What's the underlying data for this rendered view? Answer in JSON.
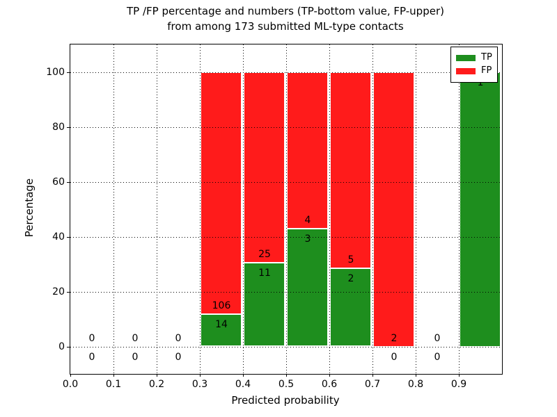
{
  "title": {
    "line1": "TP /FP percentage and numbers (TP-bottom value, FP-upper)",
    "line2": "from among 173 submitted ML-type contacts"
  },
  "axes": {
    "xlabel": "Predicted probability",
    "ylabel": "Percentage",
    "x_tick_labels": [
      "0.0",
      "0.1",
      "0.2",
      "0.3",
      "0.4",
      "0.5",
      "0.6",
      "0.7",
      "0.8",
      "0.9"
    ],
    "x_tick_values": [
      0.0,
      0.1,
      0.2,
      0.3,
      0.4,
      0.5,
      0.6,
      0.7,
      0.8,
      0.9
    ],
    "y_tick_values": [
      0,
      20,
      40,
      60,
      80,
      100
    ],
    "xlim": [
      0.0,
      1.0
    ],
    "ylim": [
      -10,
      110
    ],
    "grid": "dotted"
  },
  "legend": {
    "items": [
      {
        "label": "TP",
        "color": "#1e8e1e"
      },
      {
        "label": "FP",
        "color": "#ff1b1b"
      }
    ],
    "position": "upper right"
  },
  "colors": {
    "tp": "#1e8e1e",
    "fp": "#ff1b1b",
    "bar_edge": "#ffffff",
    "text": "#000000"
  },
  "chart_data": {
    "type": "bar",
    "stacked": true,
    "normalized_to_percent": true,
    "title": "TP /FP percentage and numbers (TP-bottom value, FP-upper) from among 173 submitted ML-type contacts",
    "xlabel": "Predicted probability",
    "ylabel": "Percentage",
    "ylim": [
      -10,
      110
    ],
    "bin_width": 0.1,
    "series_names": [
      "TP",
      "FP"
    ],
    "bins": [
      {
        "start": 0.0,
        "end": 0.1,
        "tp": 0,
        "fp": 0,
        "tp_pct": null
      },
      {
        "start": 0.1,
        "end": 0.2,
        "tp": 0,
        "fp": 0,
        "tp_pct": null
      },
      {
        "start": 0.2,
        "end": 0.3,
        "tp": 0,
        "fp": 0,
        "tp_pct": null
      },
      {
        "start": 0.3,
        "end": 0.4,
        "tp": 14,
        "fp": 106,
        "tp_pct": 11.67
      },
      {
        "start": 0.4,
        "end": 0.5,
        "tp": 11,
        "fp": 25,
        "tp_pct": 30.56
      },
      {
        "start": 0.5,
        "end": 0.6,
        "tp": 3,
        "fp": 4,
        "tp_pct": 42.86
      },
      {
        "start": 0.6,
        "end": 0.7,
        "tp": 2,
        "fp": 5,
        "tp_pct": 28.57
      },
      {
        "start": 0.7,
        "end": 0.8,
        "tp": 0,
        "fp": 2,
        "tp_pct": 0.0
      },
      {
        "start": 0.8,
        "end": 0.9,
        "tp": 0,
        "fp": 0,
        "tp_pct": null
      },
      {
        "start": 0.9,
        "end": 1.0,
        "tp": 1,
        "fp": 0,
        "tp_pct": 100.0
      }
    ]
  }
}
